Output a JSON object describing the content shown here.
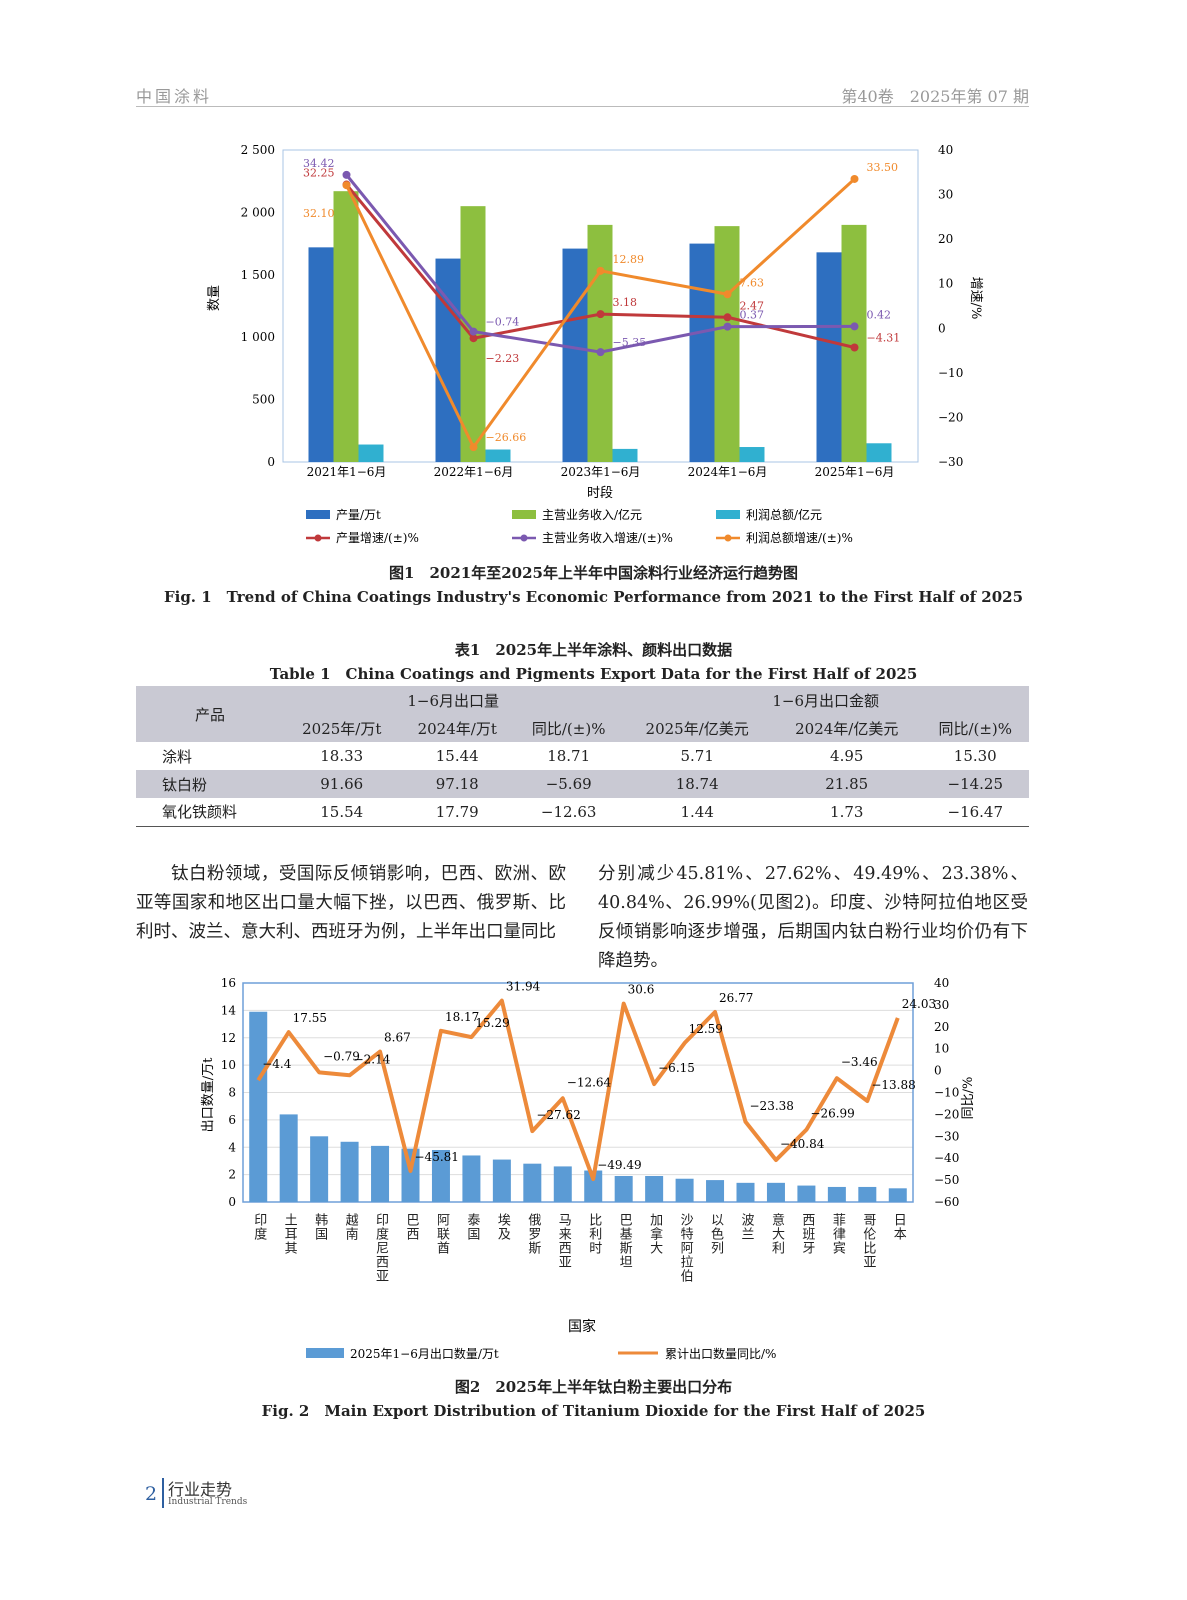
{
  "header": {
    "journal": "中国涂料",
    "issue": "第40卷　2025年第 07 期"
  },
  "figure1": {
    "caption_cn": "图1　2021年至2025年上半年中国涂料行业经济运行趋势图",
    "caption_en": "Fig. 1　Trend of China Coatings Industry's Economic Performance from 2021 to the First Half of 2025",
    "chart_data": {
      "type": "bar",
      "categories": [
        "2021年1−6月",
        "2022年1−6月",
        "2023年1−6月",
        "2024年1−6月",
        "2025年1−6月"
      ],
      "xlabel": "时段",
      "ylabel": "数量",
      "y2label": "增速/%",
      "ylim": [
        0,
        2500
      ],
      "yticks": [
        "0",
        "500",
        "1 000",
        "1 500",
        "2 000",
        "2 500"
      ],
      "y2lim": [
        -30,
        40
      ],
      "y2ticks": [
        "−30",
        "−20",
        "−10",
        "0",
        "10",
        "20",
        "30",
        "40"
      ],
      "bar_series": [
        {
          "name": "产量/万t",
          "color": "#2e6fc0",
          "values": [
            1720,
            1630,
            1710,
            1750,
            1680
          ]
        },
        {
          "name": "主营业务收入/亿元",
          "color": "#8dbf3f",
          "values": [
            2170,
            2050,
            1900,
            1890,
            1900
          ]
        },
        {
          "name": "利润总额/亿元",
          "color": "#30b0d0",
          "values": [
            140,
            100,
            105,
            120,
            150
          ]
        }
      ],
      "line_series": [
        {
          "name": "产量增速/(±)%",
          "color": "#c0393b",
          "values": [
            32.25,
            -2.23,
            3.18,
            2.47,
            -4.31
          ],
          "labels": [
            "32.25",
            "−2.23",
            "3.18",
            "2.47",
            "−4.31"
          ]
        },
        {
          "name": "主营业务收入增速/(±)%",
          "color": "#7b59b0",
          "values": [
            34.42,
            -0.74,
            -5.35,
            0.37,
            0.42
          ],
          "labels": [
            "34.42",
            "−0.74",
            "−5.35",
            "0.37",
            "0.42"
          ]
        },
        {
          "name": "利润总额增速/(±)%",
          "color": "#f08a2c",
          "values": [
            32.1,
            -26.66,
            12.89,
            7.63,
            33.5
          ],
          "labels": [
            "32.10",
            "−26.66",
            "12.89",
            "7.63",
            "33.50"
          ]
        }
      ]
    }
  },
  "table1": {
    "caption_cn": "表1　2025年上半年涂料、颜料出口数据",
    "caption_en": "Table 1　China Coatings and Pigments Export Data for the First Half of 2025",
    "head_product": "产品",
    "group1": "1−6月出口量",
    "group2": "1−6月出口金额",
    "columns": [
      "2025年/万t",
      "2024年/万t",
      "同比/(±)%",
      "2025年/亿美元",
      "2024年/亿美元",
      "同比/(±)%"
    ],
    "rows": [
      [
        "涂料",
        "18.33",
        "15.44",
        "18.71",
        "5.71",
        "4.95",
        "15.30"
      ],
      [
        "钛白粉",
        "91.66",
        "97.18",
        "−5.69",
        "18.74",
        "21.85",
        "−14.25"
      ],
      [
        "氧化铁颜料",
        "15.54",
        "17.79",
        "−12.63",
        "1.44",
        "1.73",
        "−16.47"
      ]
    ]
  },
  "body": {
    "left": "钛白粉领域，受国际反倾销影响，巴西、欧洲、欧亚等国家和地区出口量大幅下挫，以巴西、俄罗斯、比利时、波兰、意大利、西班牙为例，上半年出口量同比",
    "right": "分别减少45.81%、27.62%、49.49%、23.38%、40.84%、26.99%(见图2)。印度、沙特阿拉伯地区受反倾销影响逐步增强，后期国内钛白粉行业均价仍有下降趋势。"
  },
  "figure2": {
    "caption_cn": "图2　2025年上半年钛白粉主要出口分布",
    "caption_en": "Fig. 2　Main Export Distribution of Titanium Dioxide for the First Half of 2025",
    "chart_data": {
      "type": "bar",
      "categories": [
        "印度",
        "土耳其",
        "韩国",
        "越南",
        "印度尼西亚",
        "巴西",
        "阿联酋",
        "泰国",
        "埃及",
        "俄罗斯",
        "马来西亚",
        "比利时",
        "巴基斯坦",
        "加拿大",
        "沙特阿拉伯",
        "以色列",
        "波兰",
        "意大利",
        "西班牙",
        "菲律宾",
        "哥伦比亚",
        "日本"
      ],
      "xlabel": "国家",
      "ylabel": "出口数量/万t",
      "y2label": "同比/%",
      "ylim": [
        0,
        16
      ],
      "yticks": [
        "0",
        "2",
        "4",
        "6",
        "8",
        "10",
        "12",
        "14",
        "16"
      ],
      "y2lim": [
        -60,
        40
      ],
      "y2ticks": [
        "−60",
        "−50",
        "−40",
        "−30",
        "−20",
        "−10",
        "0",
        "10",
        "20",
        "30",
        "40"
      ],
      "grid": true,
      "bar_series": {
        "name": "2025年1−6月出口数量/万t",
        "color": "#5b9bd5",
        "values": [
          13.9,
          6.4,
          4.8,
          4.4,
          4.1,
          3.9,
          3.8,
          3.4,
          3.1,
          2.8,
          2.6,
          2.3,
          1.9,
          1.9,
          1.7,
          1.6,
          1.4,
          1.4,
          1.2,
          1.1,
          1.1,
          1.0
        ]
      },
      "line_series": {
        "name": "累计出口数量同比/%",
        "color": "#ed8a3a",
        "values": [
          -4.4,
          17.55,
          -0.79,
          -2.14,
          8.67,
          -45.81,
          18.17,
          15.29,
          31.94,
          -27.62,
          -12.64,
          -49.49,
          30.6,
          -6.15,
          12.59,
          26.77,
          -23.38,
          -40.84,
          -26.99,
          -3.46,
          -13.88,
          24.03
        ],
        "labels": [
          "−4.4",
          "17.55",
          "−0.79",
          "−2.14",
          "8.67",
          "−45.81",
          "18.17",
          "15.29",
          "31.94",
          "−27.62",
          "−12.64",
          "−49.49",
          "30.6",
          "−6.15",
          "12.59",
          "26.77",
          "−23.38",
          "−40.84",
          "−26.99",
          "−3.46",
          "−13.88",
          "24.03"
        ]
      }
    }
  },
  "footer": {
    "page": "2",
    "section_cn": "行业走势",
    "section_en": "Industrial Trends"
  }
}
